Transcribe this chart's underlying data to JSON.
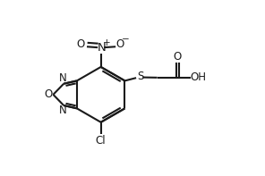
{
  "bg_color": "#ffffff",
  "line_color": "#1a1a1a",
  "line_width": 1.5,
  "font_size": 8.5,
  "fig_width": 2.96,
  "fig_height": 1.97,
  "dpi": 100,
  "xlim": [
    0,
    10
  ],
  "ylim": [
    0,
    6.5
  ]
}
